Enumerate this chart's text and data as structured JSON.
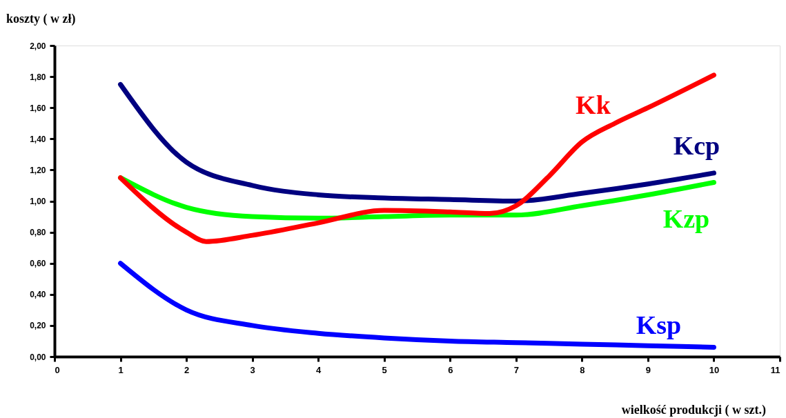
{
  "chart_data": {
    "type": "line",
    "ylabel": "koszty ( w zł)",
    "xlabel": "wielkość produkcji ( w szt.)",
    "xlim": [
      0,
      11
    ],
    "xticks": [
      0,
      1,
      2,
      3,
      4,
      5,
      6,
      7,
      8,
      9,
      10,
      11
    ],
    "ylim": [
      0,
      2
    ],
    "yticks": [
      {
        "value": 0,
        "label": "0,00"
      },
      {
        "value": 0.2,
        "label": "0,20"
      },
      {
        "value": 0.4,
        "label": "0,40"
      },
      {
        "value": 0.6,
        "label": "0,60"
      },
      {
        "value": 0.8,
        "label": "0,80"
      },
      {
        "value": 1,
        "label": "1,00"
      },
      {
        "value": 1.2,
        "label": "1,20"
      },
      {
        "value": 1.4,
        "label": "1,40"
      },
      {
        "value": 1.6,
        "label": "1,60"
      },
      {
        "value": 1.8,
        "label": "1,80"
      },
      {
        "value": 2,
        "label": "2,00"
      }
    ],
    "grid": false,
    "marker": "none",
    "line_style": "solid",
    "series": [
      {
        "name": "Kcp",
        "color": "#000080",
        "x": [
          1,
          2,
          3,
          4,
          5,
          6,
          7,
          8,
          9,
          10
        ],
        "values": [
          1.75,
          1.25,
          1.1,
          1.04,
          1.02,
          1.01,
          1.0,
          1.05,
          1.11,
          1.18
        ]
      },
      {
        "name": "Kzp",
        "color": "#00ff00",
        "x": [
          1,
          2,
          3,
          4,
          5,
          6,
          7,
          8,
          9,
          10
        ],
        "values": [
          1.15,
          0.96,
          0.9,
          0.89,
          0.9,
          0.91,
          0.91,
          0.97,
          1.04,
          1.12
        ]
      },
      {
        "name": "Kk",
        "color": "#ff0000",
        "x": [
          1,
          2,
          2.3,
          3,
          4,
          5,
          6,
          6.6,
          7,
          7.5,
          8,
          8.5,
          9,
          10
        ],
        "values": [
          1.15,
          0.8,
          0.74,
          0.78,
          0.86,
          0.94,
          0.93,
          0.92,
          0.97,
          1.16,
          1.38,
          1.5,
          1.6,
          1.81
        ]
      },
      {
        "name": "Ksp",
        "color": "#0000ff",
        "x": [
          1,
          2,
          3,
          4,
          5,
          6,
          7,
          8,
          9,
          10
        ],
        "values": [
          0.6,
          0.3,
          0.2,
          0.15,
          0.12,
          0.1,
          0.09,
          0.08,
          0.07,
          0.06
        ]
      }
    ]
  }
}
